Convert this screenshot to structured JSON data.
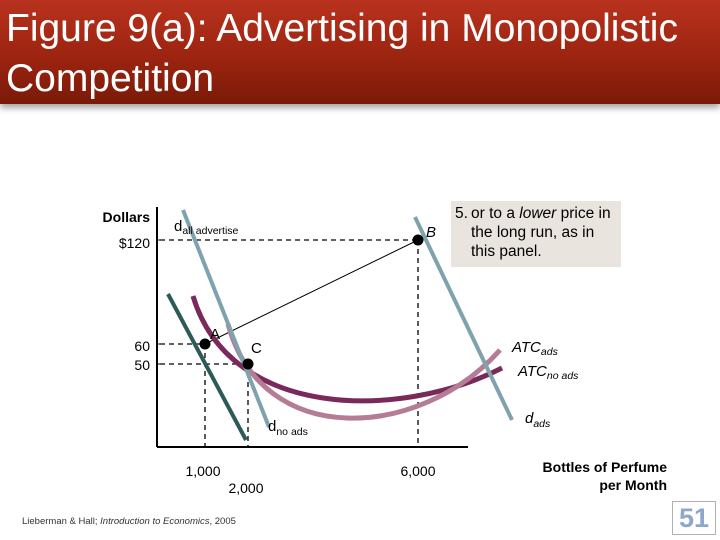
{
  "slide": {
    "title": "Figure 9(a):  Advertising in Monopolistic Competition",
    "footer_authors": "Lieberman & Hall; ",
    "footer_book": "Introduction to Economics",
    "footer_year": ", 2005",
    "page_number": "51"
  },
  "colors": {
    "header": "#9c2410",
    "demand_line": "#7fa3ae",
    "dark_demand": "#2d5a58",
    "atc_ads": "#b57c95",
    "atc_no_ads": "#7a2a5a"
  },
  "diagram": {
    "y_axis_label": "Dollars",
    "y_ticks": [
      "$120",
      "60",
      "50"
    ],
    "x_ticks": [
      "1,000",
      "2,000",
      "6,000"
    ],
    "x_axis_label_line1": "Bottles of Perfume",
    "x_axis_label_line2": "per Month",
    "curves": {
      "d_all_main": "d",
      "d_all_sub": "all advertise",
      "d_no_main": "d",
      "d_no_sub": "no ads",
      "d_ads_main": "d",
      "d_ads_sub": "ads",
      "atc_ads_main": "ATC",
      "atc_ads_sub": "ads",
      "atc_no_main": "ATC",
      "atc_no_sub": "no ads"
    },
    "points": [
      "A",
      "B",
      "C"
    ],
    "callout": {
      "number": "5.",
      "text_before": "or to a ",
      "text_emph": "lower",
      "text_after": " price in the long run, as in this panel."
    }
  }
}
